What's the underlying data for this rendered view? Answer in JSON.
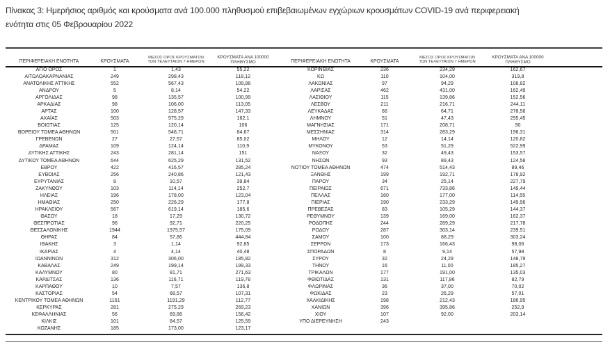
{
  "page": {
    "title": "Πίνακας 3: Ημερήσιος αριθμός και κρούσματα ανά 100.000 πληθυσμού επιβεβαιωμένων εγχώριων κρουσμάτων COVID-19 ανά περιφερειακή ενότητα στις 05 Φεβρουαρίου 2022"
  },
  "colors": {
    "text": "#262626",
    "rule_dark": "#141414",
    "rule_gray": "#4e4e4e",
    "background": "#ffffff"
  },
  "columns": {
    "region": "ΠΕΡΙΦΕΡΕΙΑΚΗ ΕΝΟΤΗΤΑ",
    "cases": "ΚΡΟΥΣΜΑΤΑ",
    "avg7": "ΜΕΣΟΣ ΟΡΟΣ ΚΡΟΥΣΜΑΤΩΝ ΤΩΝ ΤΕΛΕΥΤΑΙΩΝ 7 ΗΜΕΡΩΝ",
    "per100k": "ΚΡΟΥΣΜΑΤΑ ΑΝΑ 100000 ΠΛΗΘΥΣΜΟ"
  },
  "left_table": {
    "rows": [
      [
        "ΑΓΙΟ ΟΡΟΣ",
        "1",
        "1,43",
        "55,22"
      ],
      [
        "ΑΙΤΩΛΟΑΚΑΡΝΑΝΙΑΣ",
        "249",
        "298,43",
        "118,12"
      ],
      [
        "ΑΝΑΤΟΛΙΚΗΣ ΑΤΤΙΚΗΣ",
        "552",
        "567,43",
        "109,88"
      ],
      [
        "ΑΝΔΡΟΥ",
        "5",
        "8,14",
        "54,22"
      ],
      [
        "ΑΡΓΟΛΙΔΑΣ",
        "98",
        "135,57",
        "100,99"
      ],
      [
        "ΑΡΚΑΔΙΑΣ",
        "98",
        "106,00",
        "113,05"
      ],
      [
        "ΑΡΤΑΣ",
        "100",
        "128,57",
        "147,33"
      ],
      [
        "ΑΧΑΪΑΣ",
        "503",
        "575,29",
        "162,1"
      ],
      [
        "ΒΟΙΩΤΙΑΣ",
        "125",
        "120,14",
        "106"
      ],
      [
        "ΒΟΡΕΙΟΥ ΤΟΜΕΑ ΑΘΗΝΩΝ",
        "501",
        "548,71",
        "84,67"
      ],
      [
        "ΓΡΕΒΕΝΩΝ",
        "27",
        "27,57",
        "85,02"
      ],
      [
        "ΔΡΑΜΑΣ",
        "109",
        "124,14",
        "110,9"
      ],
      [
        "ΔΥΤΙΚΗΣ ΑΤΤΙΚΗΣ",
        "243",
        "281,14",
        "151"
      ],
      [
        "ΔΥΤΙΚΟΥ ΤΟΜΕΑ ΑΘΗΝΩΝ",
        "644",
        "625,29",
        "131,52"
      ],
      [
        "ΕΒΡΟΥ",
        "422",
        "416,57",
        "285,24"
      ],
      [
        "ΕΥΒΟΙΑΣ",
        "256",
        "240,86",
        "121,43"
      ],
      [
        "ΕΥΡΥΤΑΝΙΑΣ",
        "8",
        "10,57",
        "39,84"
      ],
      [
        "ΖΑΚΥΝΘΟΥ",
        "103",
        "114,14",
        "252,7"
      ],
      [
        "ΗΛΕΙΑΣ",
        "196",
        "178,00",
        "123,04"
      ],
      [
        "ΗΜΑΘΙΑΣ",
        "250",
        "226,29",
        "177,8"
      ],
      [
        "ΗΡΑΚΛΕΙΟΥ",
        "567",
        "619,14",
        "185,6"
      ],
      [
        "ΘΑΣΟΥ",
        "18",
        "17,29",
        "130,72"
      ],
      [
        "ΘΕΣΠΡΩΤΙΑΣ",
        "96",
        "92,71",
        "220,25"
      ],
      [
        "ΘΕΣΣΑΛΟΝΙΚΗΣ",
        "1944",
        "1975,57",
        "175,09"
      ],
      [
        "ΘΗΡΑΣ",
        "84",
        "57,86",
        "444,84"
      ],
      [
        "ΙΘΑΚΗΣ",
        "3",
        "1,14",
        "92,85"
      ],
      [
        "ΙΚΑΡΙΑΣ",
        "4",
        "4,14",
        "40,48"
      ],
      [
        "ΙΩΑΝΝΙΝΩΝ",
        "312",
        "306,00",
        "185,82"
      ],
      [
        "ΚΑΒΑΛΑΣ",
        "249",
        "199,14",
        "199,33"
      ],
      [
        "ΚΑΛΥΜΝΟΥ",
        "80",
        "81,71",
        "271,63"
      ],
      [
        "ΚΑΡΔΙΤΣΑΣ",
        "136",
        "116,71",
        "119,78"
      ],
      [
        "ΚΑΡΠΑΘΟΥ",
        "10",
        "7,57",
        "136,8"
      ],
      [
        "ΚΑΣΤΟΡΙΑΣ",
        "54",
        "68,57",
        "107,31"
      ],
      [
        "ΚΕΝΤΡΙΚΟΥ ΤΟΜΕΑ ΑΘΗΝΩΝ",
        "1161",
        "1191,29",
        "112,77"
      ],
      [
        "ΚΕΡΚΥΡΑΣ",
        "281",
        "275,29",
        "269,23"
      ],
      [
        "ΚΕΦΑΛΛΗΝΙΑΣ",
        "56",
        "69,86",
        "156,42"
      ],
      [
        "ΚΙΛΚΙΣ",
        "101",
        "84,57",
        "125,59"
      ],
      [
        "ΚΟΖΑΝΗΣ",
        "185",
        "173,00",
        "123,17"
      ]
    ]
  },
  "right_table": {
    "rows": [
      [
        "ΚΟΡΙΝΘΙΑΣ",
        "236",
        "234,29",
        "162,67"
      ],
      [
        "ΚΩ",
        "110",
        "104,00",
        "319,8"
      ],
      [
        "ΛΑΚΩΝΙΑΣ",
        "97",
        "94,29",
        "108,82"
      ],
      [
        "ΛΑΡΙΣΑΣ",
        "462",
        "431,00",
        "162,49"
      ],
      [
        "ΛΑΣΙΘΙΟΥ",
        "115",
        "139,86",
        "152,56"
      ],
      [
        "ΛΕΣΒΟΥ",
        "211",
        "216,71",
        "244,11"
      ],
      [
        "ΛΕΥΚΑΔΑΣ",
        "66",
        "64,71",
        "278,56"
      ],
      [
        "ΛΗΜΝΟΥ",
        "51",
        "47,43",
        "295,45"
      ],
      [
        "ΜΑΓΝΗΣΙΑΣ",
        "171",
        "208,71",
        "90"
      ],
      [
        "ΜΕΣΣΗΝΙΑΣ",
        "314",
        "283,29",
        "196,31"
      ],
      [
        "ΜΗΛΟΥ",
        "12",
        "14,14",
        "120,82"
      ],
      [
        "ΜΥΚΟΝΟΥ",
        "53",
        "51,29",
        "522,99"
      ],
      [
        "ΝΑΞΟΥ",
        "32",
        "49,43",
        "153,57"
      ],
      [
        "ΝΗΣΩΝ",
        "93",
        "89,43",
        "124,58"
      ],
      [
        "ΝΟΤΙΟΥ ΤΟΜΕΑ ΑΘΗΝΩΝ",
        "474",
        "514,43",
        "89,46"
      ],
      [
        "ΞΑΝΘΗΣ",
        "199",
        "192,71",
        "178,92"
      ],
      [
        "ΠΑΡΟΥ",
        "34",
        "25,14",
        "227,79"
      ],
      [
        "ΠΕΙΡΑΙΩΣ",
        "671",
        "733,86",
        "149,44"
      ],
      [
        "ΠΕΛΛΑΣ",
        "160",
        "177,00",
        "114,55"
      ],
      [
        "ΠΙΕΡΙΑΣ",
        "190",
        "233,29",
        "149,96"
      ],
      [
        "ΠΡΕΒΕΖΑΣ",
        "83",
        "105,29",
        "144,37"
      ],
      [
        "ΡΕΘΥΜΝΟΥ",
        "139",
        "169,00",
        "162,37"
      ],
      [
        "ΡΟΔΟΠΗΣ",
        "244",
        "289,29",
        "217,78"
      ],
      [
        "ΡΟΔΟΥ",
        "287",
        "303,14",
        "239,51"
      ],
      [
        "ΣΑΜΟΥ",
        "100",
        "88,29",
        "303,24"
      ],
      [
        "ΣΕΡΡΩΝ",
        "173",
        "166,43",
        "98,06"
      ],
      [
        "ΣΠΟΡΑΔΩΝ",
        "8",
        "9,14",
        "57,98"
      ],
      [
        "ΣΥΡΟΥ",
        "32",
        "24,29",
        "148,79"
      ],
      [
        "ΤΗΝΟΥ",
        "16",
        "11,00",
        "185,27"
      ],
      [
        "ΤΡΙΚΑΛΩΝ",
        "177",
        "191,00",
        "135,03"
      ],
      [
        "ΦΘΙΩΤΙΔΑΣ",
        "131",
        "117,86",
        "82,79"
      ],
      [
        "ΦΛΩΡΙΝΑΣ",
        "36",
        "37,00",
        "70,02"
      ],
      [
        "ΦΩΚΙΔΑΣ",
        "23",
        "26,29",
        "57,01"
      ],
      [
        "ΧΑΛΚΙΔΙΚΗΣ",
        "198",
        "212,43",
        "186,95"
      ],
      [
        "ΧΑΝΙΩΝ",
        "396",
        "395,86",
        "252,9"
      ],
      [
        "ΧΙΟΥ",
        "107",
        "92,00",
        "203,14"
      ],
      [
        "ΥΠΟ ΔΙΕΡΕΥΝΗΣΗ",
        "243",
        "",
        ""
      ]
    ]
  }
}
